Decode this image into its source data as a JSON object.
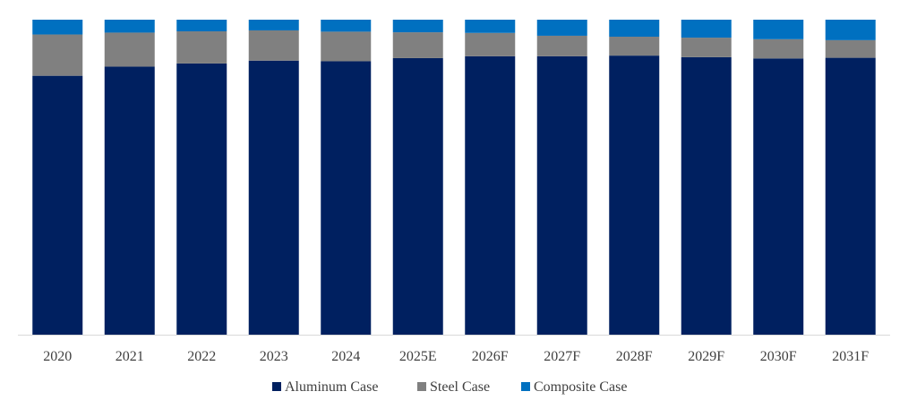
{
  "chart_data": {
    "type": "bar",
    "stacked": true,
    "normalized": true,
    "title": "",
    "xlabel": "",
    "ylabel": "",
    "ylim": [
      0,
      100
    ],
    "grid": false,
    "legend_position": "bottom",
    "categories": [
      "2020",
      "2021",
      "2022",
      "2023",
      "2024",
      "2025E",
      "2026F",
      "2027F",
      "2028F",
      "2029F",
      "2030F",
      "2031F"
    ],
    "series": [
      {
        "name": "Aluminum Case",
        "color": "#002060",
        "values": [
          82.2,
          85.1,
          86.1,
          87.0,
          86.8,
          87.8,
          88.4,
          88.4,
          88.6,
          88.1,
          87.7,
          87.9
        ]
      },
      {
        "name": "Steel Case",
        "color": "#808080",
        "values": [
          13.1,
          10.8,
          10.2,
          9.6,
          9.4,
          8.2,
          7.4,
          6.5,
          6.0,
          6.2,
          6.1,
          5.6
        ]
      },
      {
        "name": "Composite Case",
        "color": "#0070c0",
        "values": [
          4.7,
          4.1,
          3.7,
          3.4,
          3.8,
          4.0,
          4.2,
          5.1,
          5.4,
          5.7,
          6.2,
          6.5
        ]
      }
    ]
  }
}
